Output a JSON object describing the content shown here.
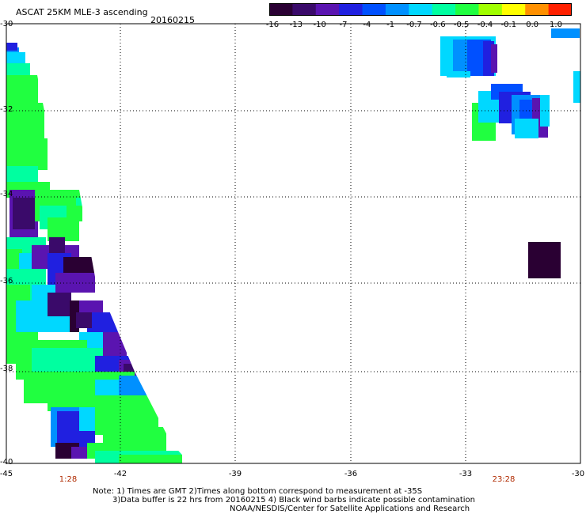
{
  "header": {
    "title": "ASCAT 25KM MLE-3 ascending",
    "date": "20160215"
  },
  "colorbar": {
    "labels": [
      "-16",
      "-13",
      "-10",
      "-7",
      "-4",
      "-1",
      "-0.7",
      "-0.6",
      "-0.5",
      "-0.4",
      "-0.1",
      "0.0",
      "1.0"
    ],
    "colors": [
      "#2a0033",
      "#3a0a6a",
      "#5a14b0",
      "#2020e0",
      "#0050ff",
      "#0090ff",
      "#00d8ff",
      "#00ffa0",
      "#20ff40",
      "#a0ff00",
      "#ffff00",
      "#ff9000",
      "#ff2000"
    ]
  },
  "axes": {
    "y_labels": [
      "-30",
      "-32",
      "-34",
      "-36",
      "-38",
      "-40"
    ],
    "x_labels": [
      "-45",
      "-42",
      "-39",
      "-36",
      "-33",
      "-30"
    ],
    "time_labels": [
      "1:28",
      "23:28"
    ]
  },
  "notes": {
    "line1": "Note: 1) Times are GMT 2)Times along bottom correspond to measurement at -35S",
    "line2": "3)Data buffer is 22 hrs from 20160215 4) Black wind barbs indicate possible contamination",
    "line3": "NOAA/NESDIS/Center for Satellite Applications and Research"
  }
}
